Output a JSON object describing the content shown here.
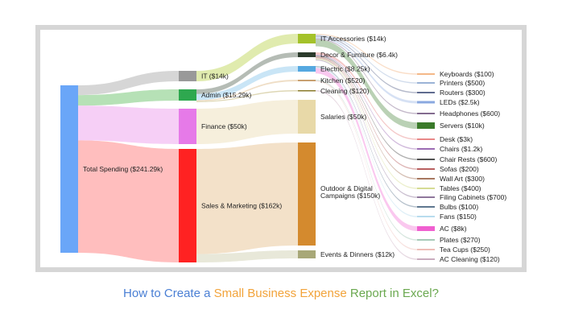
{
  "caption": {
    "part1": "How to Create a ",
    "part2": "Small Business Expense",
    "part3": " Report in Excel?",
    "color1": "#4a7fd4",
    "color2": "#f2a33a",
    "color3": "#6aa84f"
  },
  "sankey": {
    "nodes": [
      {
        "id": "total",
        "label": "Total Spending ($241.29k)",
        "value": 241.29,
        "color": "#6aa6f8"
      },
      {
        "id": "it",
        "label": "IT ($14k)",
        "value": 14,
        "color": "#999999"
      },
      {
        "id": "admin",
        "label": "Admin ($15.29k)",
        "value": 15.29,
        "color": "#2ea84f"
      },
      {
        "id": "finance",
        "label": "Finance ($50k)",
        "value": 50,
        "color": "#e67ae8"
      },
      {
        "id": "sales",
        "label": "Sales & Marketing ($162k)",
        "value": 162,
        "color": "#ff2222"
      },
      {
        "id": "itacc",
        "label": "IT Accessories ($14k)",
        "value": 14,
        "color": "#a4c22a"
      },
      {
        "id": "decor",
        "label": "Decor & Furniture ($6.4k)",
        "value": 6.4,
        "color": "#2b3a2b"
      },
      {
        "id": "electric",
        "label": "Electric ($8.25k)",
        "value": 8.25,
        "color": "#55a8e0"
      },
      {
        "id": "kitchen",
        "label": "Kitchen ($520)",
        "value": 0.52,
        "color": "#c8a070"
      },
      {
        "id": "cleaning",
        "label": "Cleaning ($120)",
        "value": 0.12,
        "color": "#8a7a2a"
      },
      {
        "id": "salaries",
        "label": "Salaries ($50k)",
        "value": 50,
        "color": "#e8d9a8"
      },
      {
        "id": "outdoor",
        "label": "Outdoor & Digital Campaigns ($150k)",
        "value": 150,
        "color": "#d48a2e"
      },
      {
        "id": "events",
        "label": "Events & Dinners ($12k)",
        "value": 12,
        "color": "#a8a878"
      },
      {
        "id": "keyboards",
        "label": "Keyboards ($100)",
        "value": 0.1,
        "color": "#f0a060"
      },
      {
        "id": "printers",
        "label": "Printers ($500)",
        "value": 0.5,
        "color": "#7a9ac8"
      },
      {
        "id": "routers",
        "label": "Routers ($300)",
        "value": 0.3,
        "color": "#2a3a6a"
      },
      {
        "id": "leds",
        "label": "LEDs ($2.5k)",
        "value": 2.5,
        "color": "#8aa8e0"
      },
      {
        "id": "headphones",
        "label": "Headphones ($600)",
        "value": 0.6,
        "color": "#5a3a6a"
      },
      {
        "id": "servers",
        "label": "Servers ($10k)",
        "value": 10,
        "color": "#3a7a2a"
      },
      {
        "id": "desk",
        "label": "Desk ($3k)",
        "value": 3,
        "color": "#e06060"
      },
      {
        "id": "chairs",
        "label": "Chairs ($1.2k)",
        "value": 1.2,
        "color": "#7a3a9a"
      },
      {
        "id": "chairrests",
        "label": "Chair Rests ($600)",
        "value": 0.6,
        "color": "#1a1a1a"
      },
      {
        "id": "sofas",
        "label": "Sofas ($200)",
        "value": 0.2,
        "color": "#a02a2a"
      },
      {
        "id": "wallart",
        "label": "Wall Art ($300)",
        "value": 0.3,
        "color": "#8a4a2a"
      },
      {
        "id": "tables",
        "label": "Tables ($400)",
        "value": 0.4,
        "color": "#c8d070"
      },
      {
        "id": "filing",
        "label": "Filing Cabinets ($700)",
        "value": 0.7,
        "color": "#6a4a7a"
      },
      {
        "id": "bulbs",
        "label": "Bulbs ($100)",
        "value": 0.1,
        "color": "#2a4a6a"
      },
      {
        "id": "fans",
        "label": "Fans ($150)",
        "value": 0.15,
        "color": "#a0d0e8"
      },
      {
        "id": "ac",
        "label": "AC ($8k)",
        "value": 8,
        "color": "#f060d0"
      },
      {
        "id": "plates",
        "label": "Plates ($270)",
        "value": 0.27,
        "color": "#8ab8a0"
      },
      {
        "id": "teacups",
        "label": "Tea Cups ($250)",
        "value": 0.25,
        "color": "#e8a8a0"
      },
      {
        "id": "accleaning",
        "label": "AC Cleaning ($120)",
        "value": 0.12,
        "color": "#b890a8"
      }
    ],
    "links": [
      {
        "source": "total",
        "target": "it",
        "value": 14
      },
      {
        "source": "total",
        "target": "admin",
        "value": 15.29
      },
      {
        "source": "total",
        "target": "finance",
        "value": 50
      },
      {
        "source": "total",
        "target": "sales",
        "value": 162
      },
      {
        "source": "it",
        "target": "itacc",
        "value": 14
      },
      {
        "source": "admin",
        "target": "decor",
        "value": 6.4
      },
      {
        "source": "admin",
        "target": "electric",
        "value": 8.25
      },
      {
        "source": "admin",
        "target": "kitchen",
        "value": 0.52
      },
      {
        "source": "admin",
        "target": "cleaning",
        "value": 0.12
      },
      {
        "source": "finance",
        "target": "salaries",
        "value": 50
      },
      {
        "source": "sales",
        "target": "outdoor",
        "value": 150
      },
      {
        "source": "sales",
        "target": "events",
        "value": 12
      },
      {
        "source": "itacc",
        "target": "keyboards",
        "value": 0.1
      },
      {
        "source": "itacc",
        "target": "printers",
        "value": 0.5
      },
      {
        "source": "itacc",
        "target": "routers",
        "value": 0.3
      },
      {
        "source": "itacc",
        "target": "leds",
        "value": 2.5
      },
      {
        "source": "itacc",
        "target": "headphones",
        "value": 0.6
      },
      {
        "source": "itacc",
        "target": "servers",
        "value": 10
      },
      {
        "source": "decor",
        "target": "desk",
        "value": 3
      },
      {
        "source": "decor",
        "target": "chairs",
        "value": 1.2
      },
      {
        "source": "decor",
        "target": "chairrests",
        "value": 0.6
      },
      {
        "source": "decor",
        "target": "sofas",
        "value": 0.2
      },
      {
        "source": "decor",
        "target": "wallart",
        "value": 0.3
      },
      {
        "source": "decor",
        "target": "tables",
        "value": 0.4
      },
      {
        "source": "decor",
        "target": "filing",
        "value": 0.7
      },
      {
        "source": "electric",
        "target": "bulbs",
        "value": 0.1
      },
      {
        "source": "electric",
        "target": "fans",
        "value": 0.15
      },
      {
        "source": "electric",
        "target": "ac",
        "value": 8
      },
      {
        "source": "kitchen",
        "target": "plates",
        "value": 0.27
      },
      {
        "source": "kitchen",
        "target": "teacups",
        "value": 0.25
      },
      {
        "source": "cleaning",
        "target": "accleaning",
        "value": 0.12
      }
    ]
  }
}
